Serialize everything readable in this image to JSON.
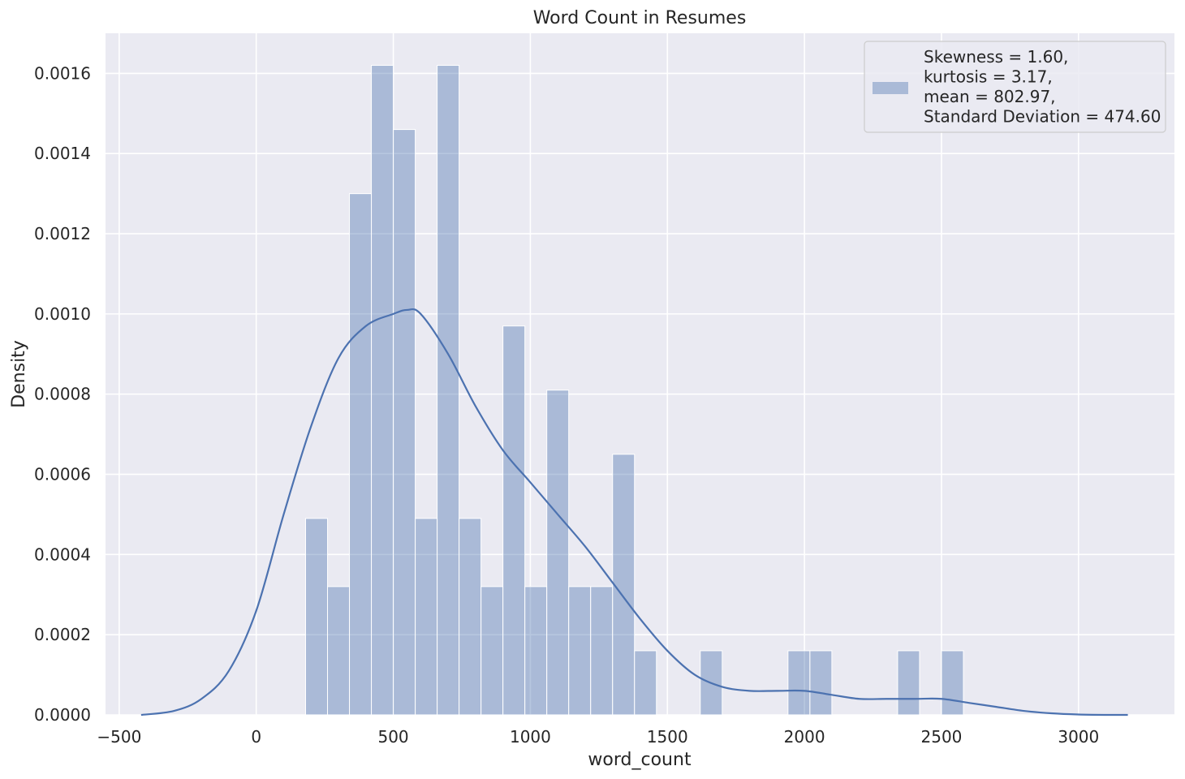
{
  "chart_data": {
    "type": "bar",
    "title": "Word Count in Resumes",
    "xlabel": "word_count",
    "ylabel": "Density",
    "xlim": [
      -550,
      3350
    ],
    "ylim": [
      0,
      0.0017
    ],
    "grid": true,
    "legend_placement": "top-right",
    "x_ticks": [
      -500,
      0,
      500,
      1000,
      1500,
      2000,
      2500,
      3000
    ],
    "x_tick_labels": [
      "−500",
      "0",
      "500",
      "1000",
      "1500",
      "2000",
      "2500",
      "3000"
    ],
    "y_ticks": [
      0,
      0.0002,
      0.0004,
      0.0006,
      0.0008,
      0.001,
      0.0012,
      0.0014,
      0.0016
    ],
    "y_tick_labels": [
      "0.0000",
      "0.0002",
      "0.0004",
      "0.0006",
      "0.0008",
      "0.0010",
      "0.0012",
      "0.0014",
      "0.0016"
    ],
    "bin_width": 80,
    "histogram": {
      "name": "Skewness = 1.60,\nkurtosis = 3.17,\nmean = 802.97,\nStandard Deviation = 474.60",
      "bin_starts": [
        180,
        260,
        340,
        420,
        500,
        580,
        660,
        740,
        820,
        900,
        980,
        1060,
        1140,
        1220,
        1300,
        1380,
        1460,
        1540,
        1620,
        1700,
        1780,
        1860,
        1940,
        2020,
        2100,
        2180,
        2260,
        2340,
        2420,
        2500
      ],
      "density": [
        0.00049,
        0.00032,
        0.0013,
        0.00162,
        0.00146,
        0.00049,
        0.00162,
        0.00049,
        0.00032,
        0.00097,
        0.00032,
        0.00081,
        0.00032,
        0.00032,
        0.00065,
        0.00016,
        0,
        0,
        0.00016,
        0,
        0,
        0,
        0.00016,
        0.00016,
        0,
        0,
        0,
        0.00016,
        0,
        0.00016
      ]
    },
    "kde": {
      "x": [
        -420,
        -300,
        -200,
        -100,
        0,
        100,
        200,
        300,
        400,
        500,
        550,
        600,
        700,
        800,
        900,
        1000,
        1100,
        1200,
        1300,
        1400,
        1500,
        1600,
        1700,
        1800,
        1900,
        2000,
        2100,
        2200,
        2300,
        2400,
        2500,
        2600,
        2700,
        2800,
        2900,
        3000,
        3100,
        3180
      ],
      "y": [
        0.0,
        1e-05,
        4e-05,
        0.00011,
        0.00026,
        0.0005,
        0.00072,
        0.00089,
        0.00097,
        0.001,
        0.00101,
        0.001,
        0.0009,
        0.00077,
        0.00066,
        0.00058,
        0.0005,
        0.00042,
        0.00033,
        0.00024,
        0.00016,
        0.0001,
        7e-05,
        6e-05,
        6e-05,
        6e-05,
        5e-05,
        4e-05,
        4e-05,
        4e-05,
        4e-05,
        3e-05,
        2e-05,
        1e-05,
        4e-06,
        1e-06,
        0.0,
        0.0
      ]
    },
    "colors": {
      "axes_bg": "#eaeaf2",
      "grid": "#ffffff",
      "bar": "#4c72b0",
      "bar_opacity": 0.4,
      "kde": "#4c72b0",
      "legend_bg": "#eaeaf2",
      "legend_border": "#cccccc"
    }
  }
}
